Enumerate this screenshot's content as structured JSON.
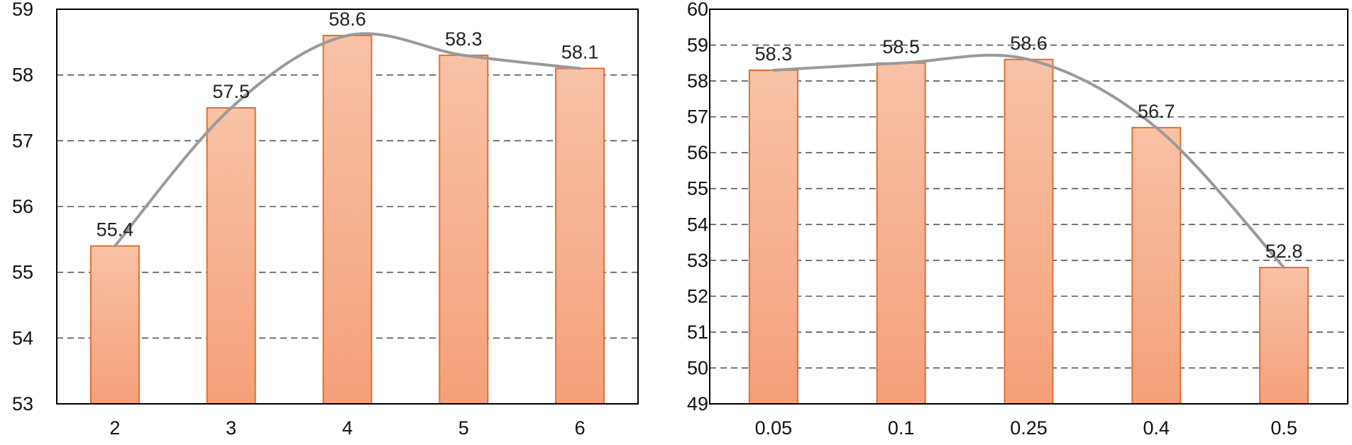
{
  "chart_data": [
    {
      "type": "bar",
      "categories": [
        "2",
        "3",
        "4",
        "5",
        "6"
      ],
      "values": [
        55.4,
        57.5,
        58.6,
        58.3,
        58.1
      ],
      "data_labels": [
        "55.4",
        "57.5",
        "58.6",
        "58.3",
        "58.1"
      ],
      "ylim": [
        53,
        59
      ],
      "yticks": [
        "53",
        "54",
        "55",
        "56",
        "57",
        "58",
        "59"
      ],
      "trend_line": true,
      "grid": true,
      "title": "",
      "xlabel": "",
      "ylabel": ""
    },
    {
      "type": "bar",
      "categories": [
        "0.05",
        "0.1",
        "0.25",
        "0.4",
        "0.5"
      ],
      "values": [
        58.3,
        58.5,
        58.6,
        56.7,
        52.8
      ],
      "data_labels": [
        "58.3",
        "58.5",
        "58.6",
        "56.7",
        "52.8"
      ],
      "ylim": [
        49,
        60
      ],
      "yticks": [
        "49",
        "50",
        "51",
        "52",
        "53",
        "54",
        "55",
        "56",
        "57",
        "58",
        "59",
        "60"
      ],
      "trend_line": true,
      "grid": true,
      "title": "",
      "xlabel": "",
      "ylabel": ""
    }
  ],
  "colors": {
    "bar_top": "#f8c2a6",
    "bar_bottom": "#f5a07a",
    "bar_border": "#e07030",
    "trend_line": "#9a9a9a",
    "grid": "#555555",
    "axis": "#000000"
  }
}
